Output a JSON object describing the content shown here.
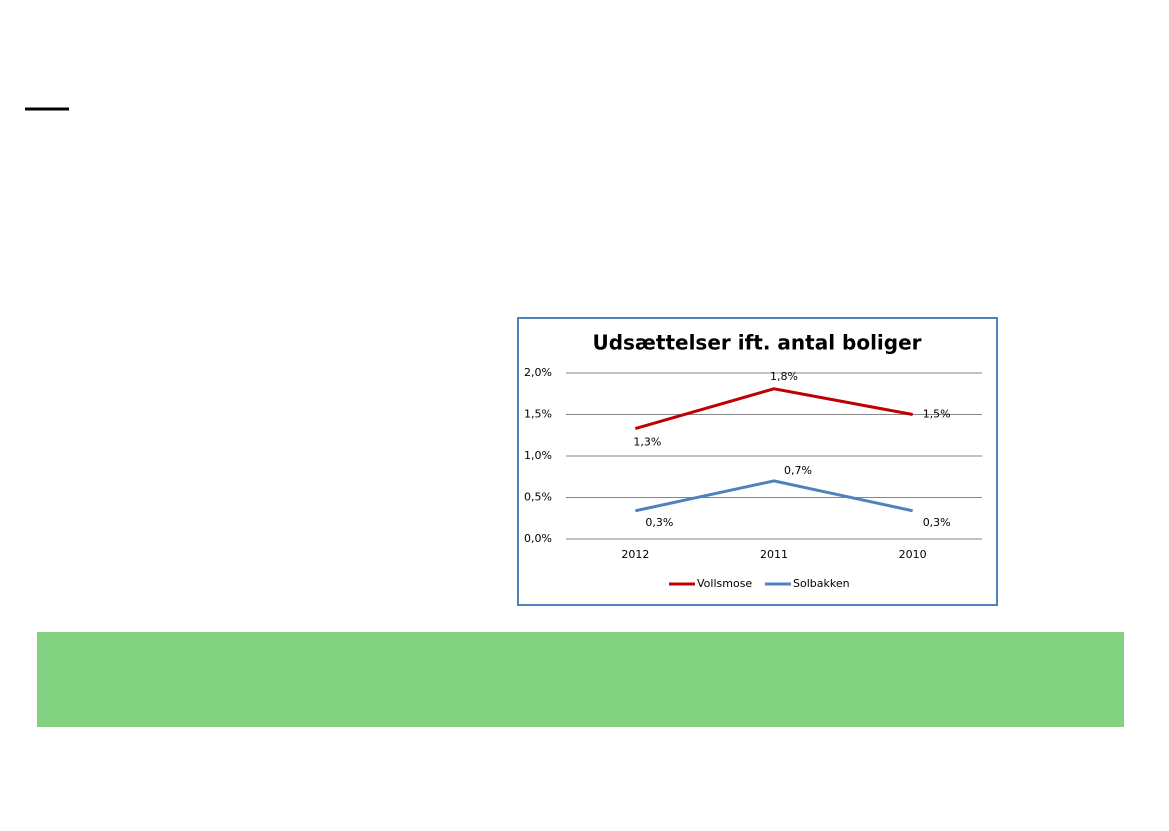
{
  "chart_data": {
    "type": "line",
    "title": "Udsættelser ift. antal boliger",
    "categories": [
      "2012",
      "2011",
      "2010"
    ],
    "series": [
      {
        "name": "Vollsmose",
        "color": "#c00000",
        "values": [
          1.33,
          1.81,
          1.5
        ],
        "value_labels": [
          "1,3%",
          "1,8%",
          "1,5%"
        ]
      },
      {
        "name": "Solbakken",
        "color": "#4f81bd",
        "values": [
          0.34,
          0.7,
          0.34
        ],
        "value_labels": [
          "0,3%",
          "0,7%",
          "0,3%"
        ]
      }
    ],
    "ylim": [
      0,
      2
    ],
    "yticks": [
      {
        "value": 0,
        "label": "0,0%"
      },
      {
        "value": 0.5,
        "label": "0,5%"
      },
      {
        "value": 1,
        "label": "1,0%"
      },
      {
        "value": 1.5,
        "label": "1,5%"
      },
      {
        "value": 2,
        "label": "2,0%"
      }
    ],
    "grid": true,
    "legend": "bottom"
  }
}
